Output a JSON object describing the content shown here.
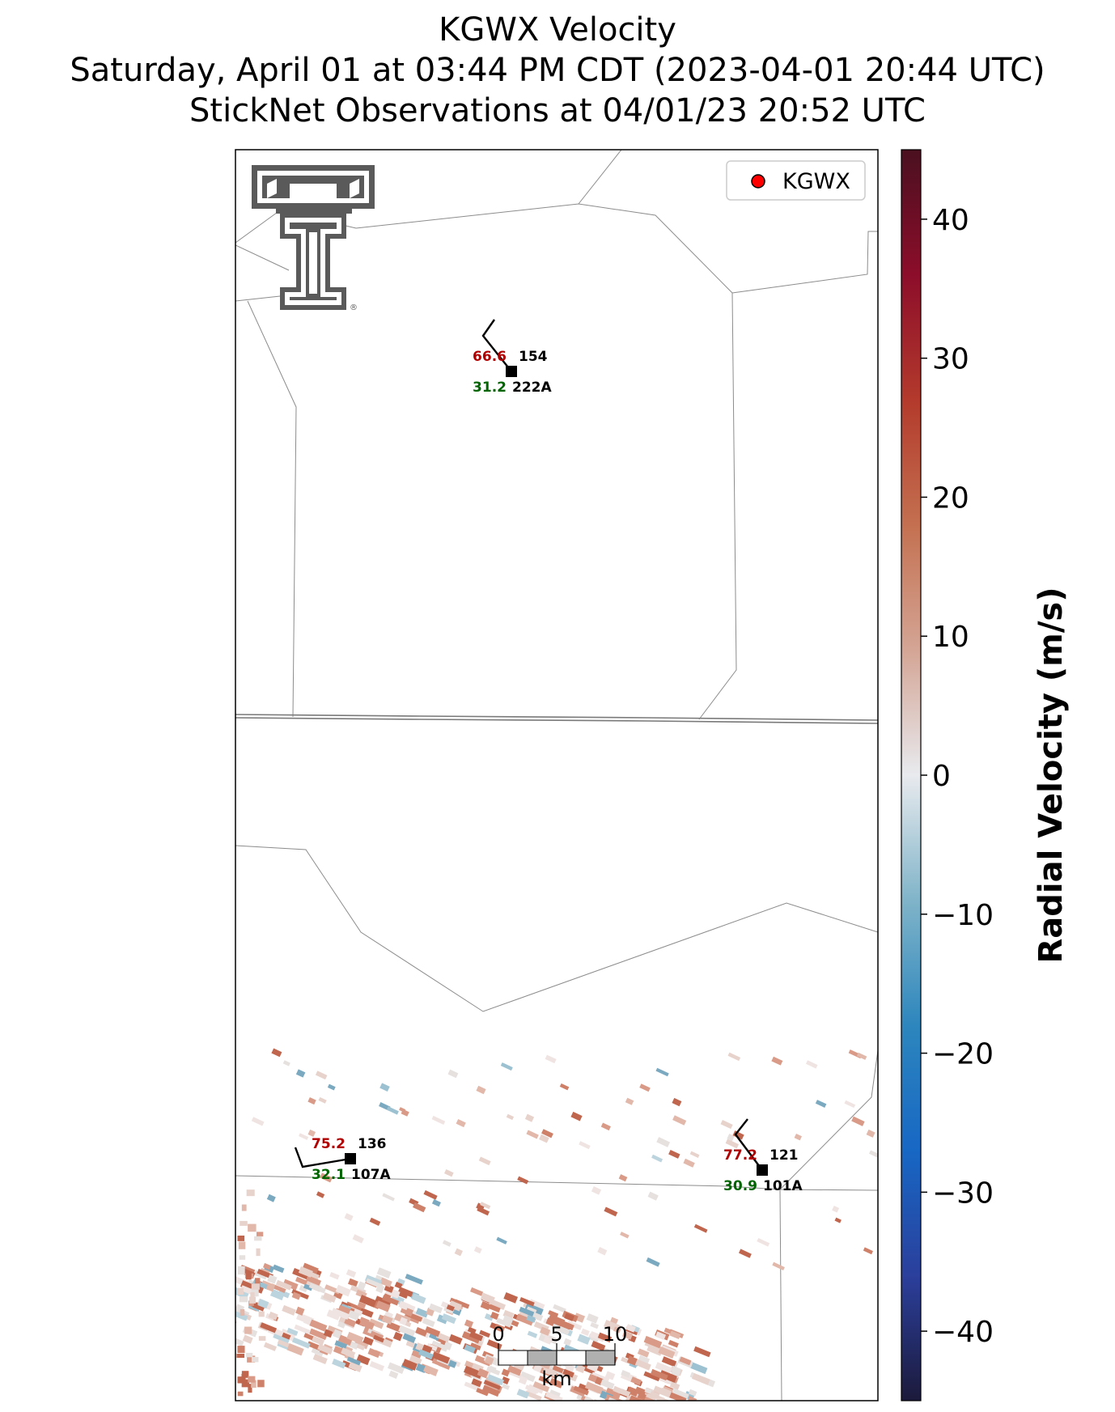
{
  "title": {
    "line1": "KGWX Velocity",
    "line2": "Saturday, April 01 at 03:44 PM CDT (2023-04-01 20:44 UTC)",
    "line3": "StickNet Observations at 04/01/23 20:52 UTC"
  },
  "legend": {
    "label": "KGWX",
    "marker_color": "#ff0000"
  },
  "colorbar": {
    "label": "Radial Velocity (m/s)",
    "min": -45,
    "max": 45,
    "ticks": [
      40,
      30,
      20,
      10,
      0,
      -10,
      -20,
      -30,
      -40
    ],
    "tick_labels": [
      "40",
      "30",
      "20",
      "10",
      "0",
      "−10",
      "−20",
      "−30",
      "−40"
    ],
    "colors": [
      "#1c1a3b",
      "#2b3f9c",
      "#1767c4",
      "#2d86bd",
      "#80b4c9",
      "#e8eaee",
      "#d4a595",
      "#c47050",
      "#b33a2c",
      "#8c0d2a",
      "#4a1020"
    ]
  },
  "stations": [
    {
      "id": "222A",
      "temperature": "66.6",
      "dewpoint": "31.2",
      "pressure": "154"
    },
    {
      "id": "107A",
      "temperature": "75.2",
      "dewpoint": "32.1",
      "pressure": "136"
    },
    {
      "id": "101A",
      "temperature": "77.2",
      "dewpoint": "30.9",
      "pressure": "121"
    }
  ],
  "scalebar": {
    "labels": [
      "0",
      "5",
      "10"
    ],
    "unit": "km"
  },
  "colors": {
    "temperature": "#b00000",
    "dewpoint": "#006400",
    "station_label": "#000000",
    "boundary": "#8c8c8c"
  },
  "logo": {
    "name": "texas-tech-double-t-logo",
    "mark": "®"
  }
}
